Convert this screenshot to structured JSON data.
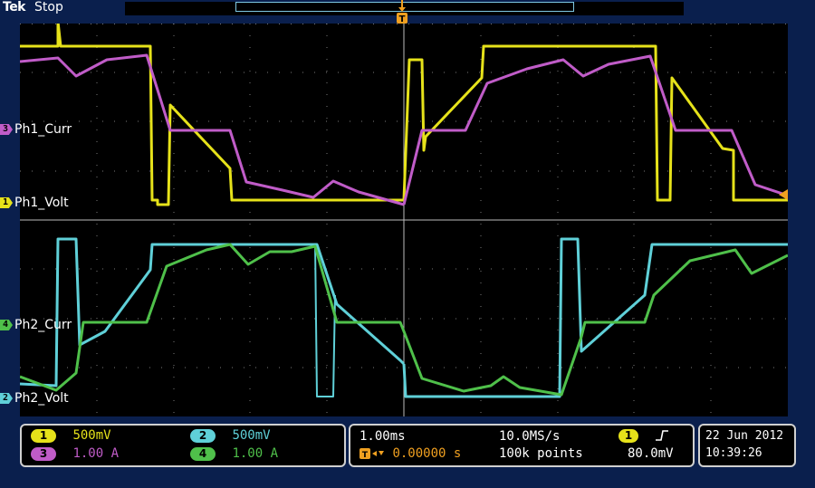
{
  "header": {
    "brand": "Tek",
    "status": "Stop",
    "trigger_icon": "T"
  },
  "colors": {
    "ch1": "#e6e21a",
    "ch2": "#5fd0d8",
    "ch3": "#c05cc8",
    "ch4": "#4fc04a",
    "grid": "#8a8a8a"
  },
  "channel_labels": [
    {
      "num": "3",
      "name": "Ph1_Curr",
      "color_key": "ch3"
    },
    {
      "num": "1",
      "name": "Ph1_Volt",
      "color_key": "ch1"
    },
    {
      "num": "4",
      "name": "Ph2_Curr",
      "color_key": "ch4"
    },
    {
      "num": "2",
      "name": "Ph2_Volt",
      "color_key": "ch2"
    }
  ],
  "vertical_settings": {
    "ch1": {
      "num": "1",
      "scale": "500mV"
    },
    "ch2": {
      "num": "2",
      "scale": "500mV"
    },
    "ch3": {
      "num": "3",
      "scale": "1.00 A"
    },
    "ch4": {
      "num": "4",
      "scale": "1.00 A"
    }
  },
  "horizontal": {
    "time_per_div": "1.00ms",
    "sample_rate": "10.0MS/s",
    "trigger_position": "0.00000 s",
    "record_length": "100k points"
  },
  "trigger": {
    "source": "1",
    "slope_icon": "rising-edge",
    "level": "80.0mV"
  },
  "datetime": {
    "date": "22 Jun  2012",
    "time": "10:39:26"
  }
}
